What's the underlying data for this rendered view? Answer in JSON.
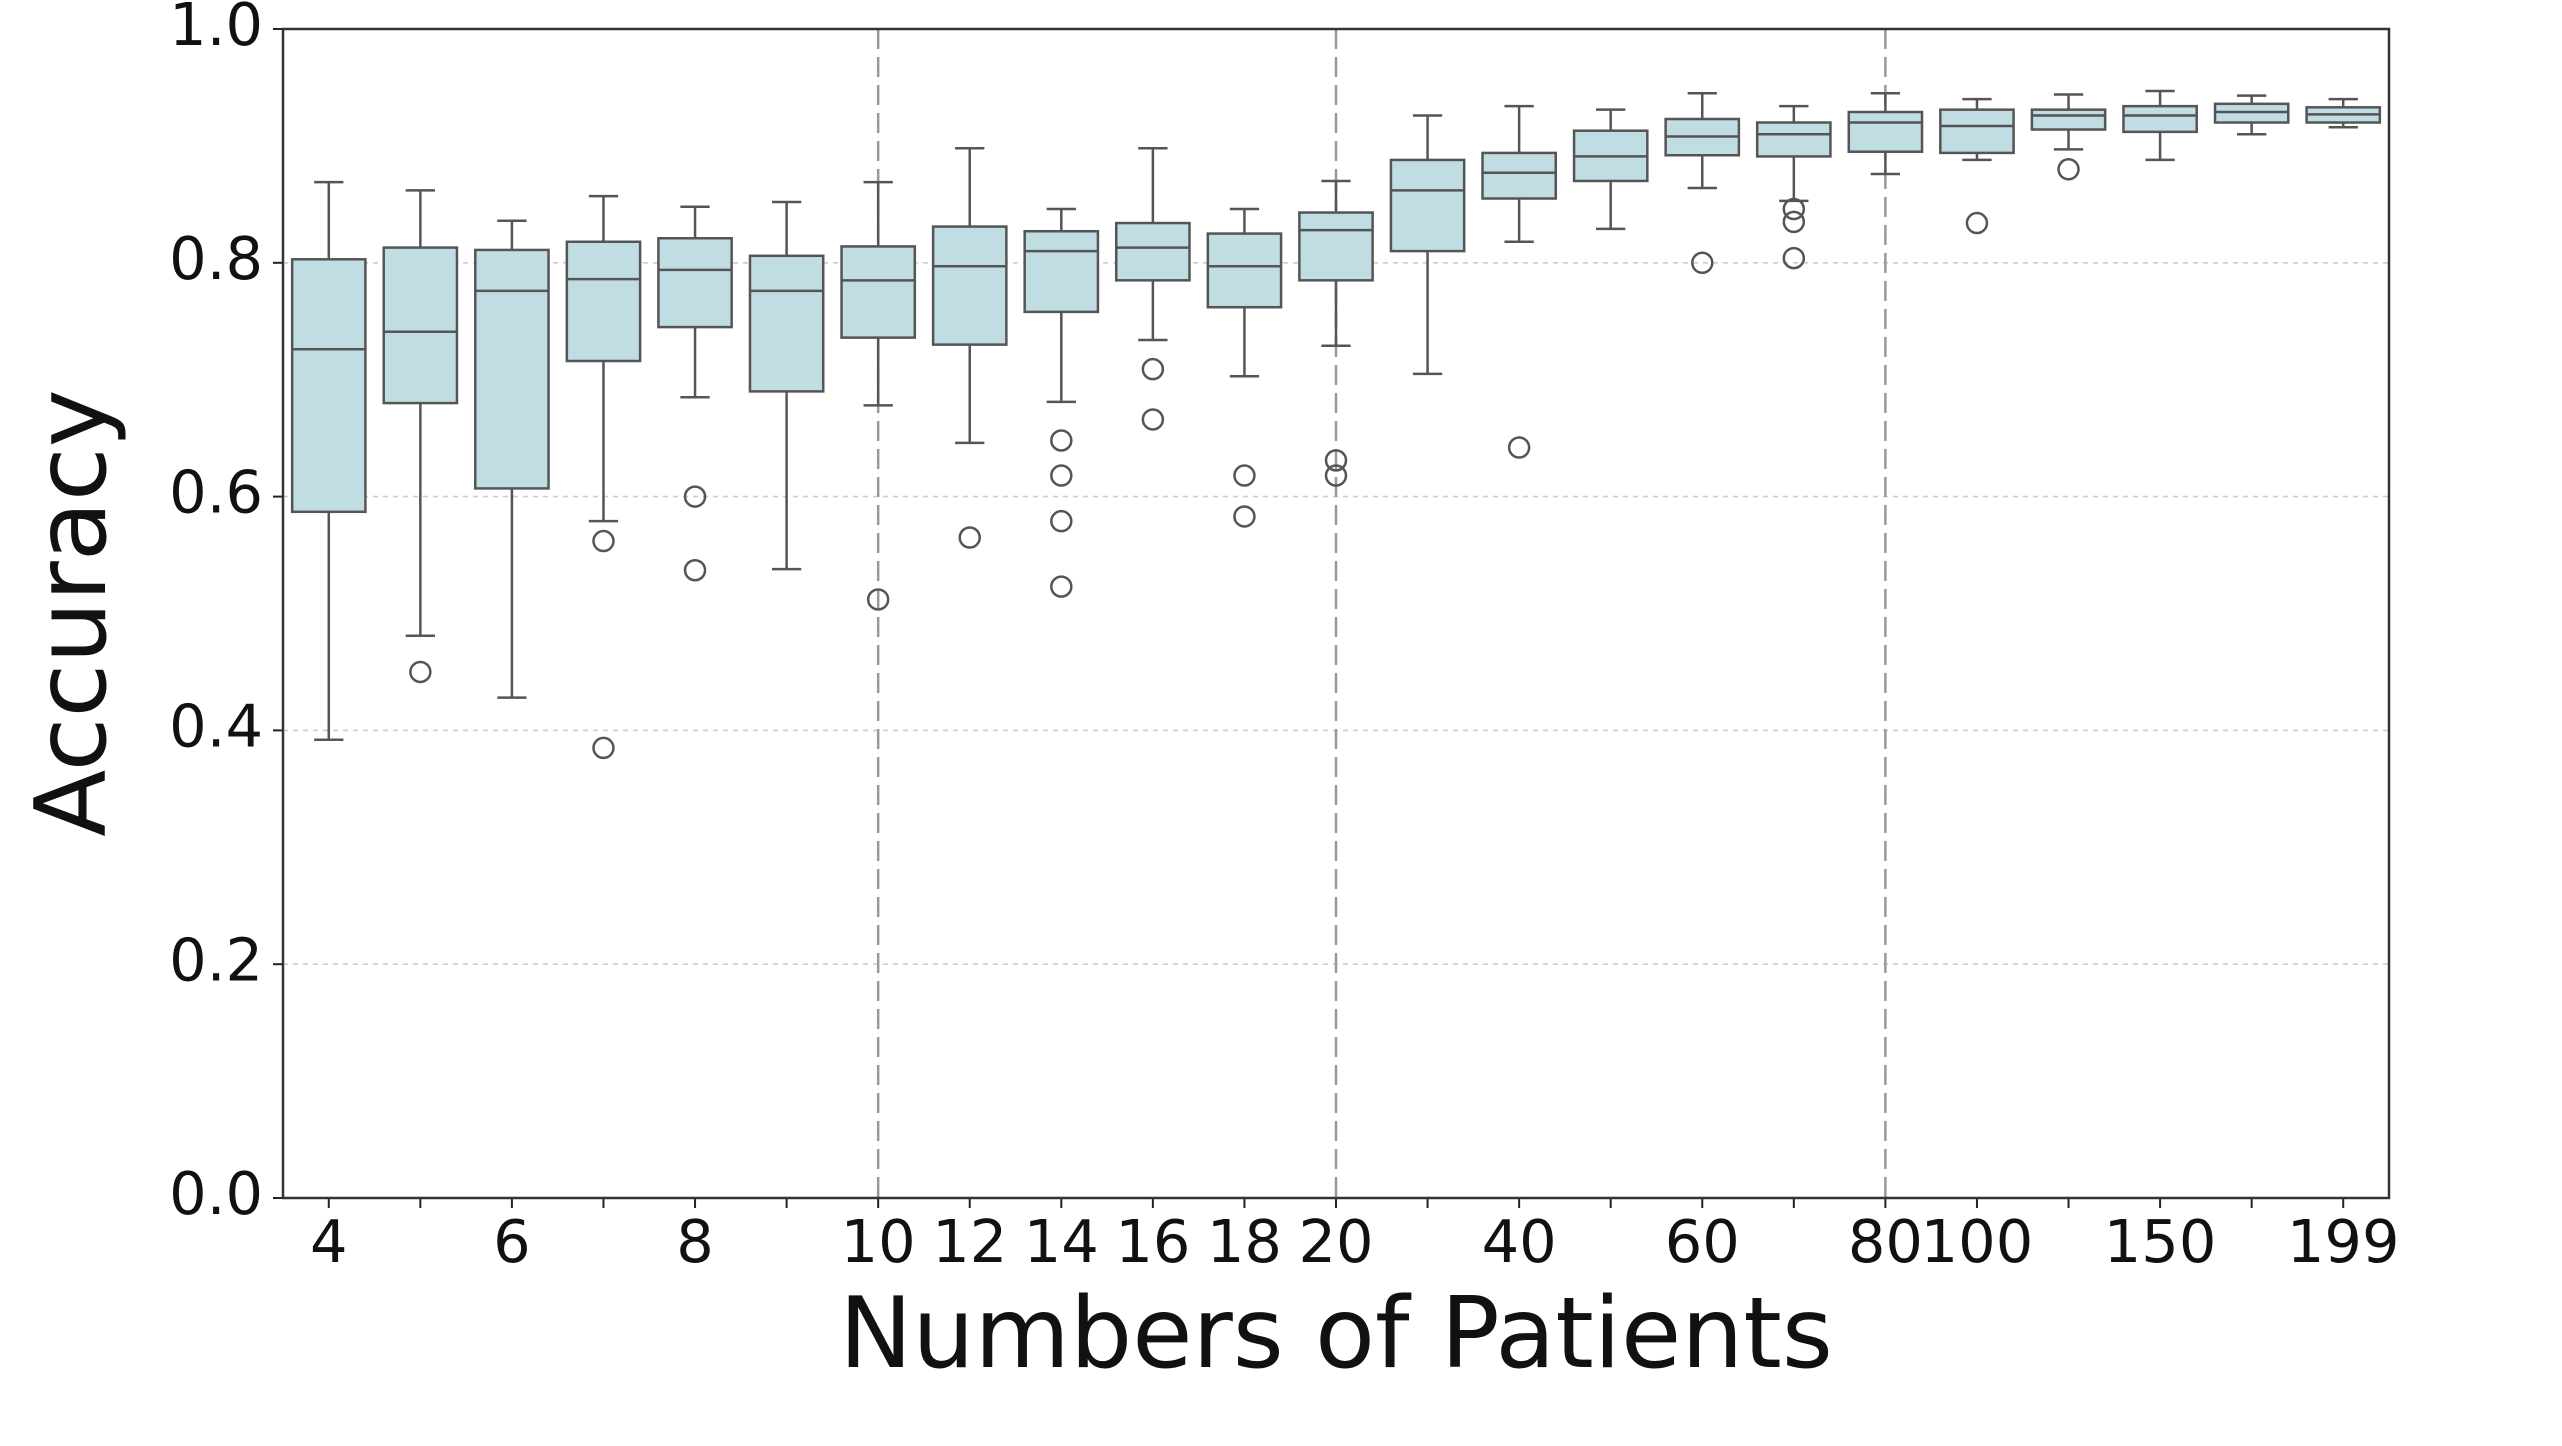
{
  "chart_data": {
    "type": "boxplot",
    "xlabel": "Numbers of Patients",
    "ylabel": "Accuracy",
    "categories": [
      "4",
      null,
      "6",
      null,
      "8",
      null,
      "10",
      "12",
      "14",
      "16",
      "18",
      "20",
      null,
      "40",
      null,
      "60",
      null,
      "80",
      "100",
      null,
      "150",
      null,
      "199"
    ],
    "boxes": [
      {
        "whislo": 0.392,
        "q1": 0.587,
        "med": 0.726,
        "q3": 0.803,
        "whishi": 0.869,
        "fliers": []
      },
      {
        "whislo": 0.481,
        "q1": 0.68,
        "med": 0.741,
        "q3": 0.813,
        "whishi": 0.862,
        "fliers": [
          0.45
        ]
      },
      {
        "whislo": 0.428,
        "q1": 0.607,
        "med": 0.776,
        "q3": 0.811,
        "whishi": 0.836,
        "fliers": []
      },
      {
        "whislo": 0.579,
        "q1": 0.716,
        "med": 0.786,
        "q3": 0.818,
        "whishi": 0.857,
        "fliers": [
          0.562,
          0.385
        ]
      },
      {
        "whislo": 0.685,
        "q1": 0.745,
        "med": 0.794,
        "q3": 0.821,
        "whishi": 0.848,
        "fliers": [
          0.6,
          0.537
        ]
      },
      {
        "whislo": 0.538,
        "q1": 0.69,
        "med": 0.776,
        "q3": 0.806,
        "whishi": 0.852,
        "fliers": []
      },
      {
        "whislo": 0.678,
        "q1": 0.736,
        "med": 0.785,
        "q3": 0.814,
        "whishi": 0.869,
        "fliers": [
          0.512
        ]
      },
      {
        "whislo": 0.646,
        "q1": 0.73,
        "med": 0.797,
        "q3": 0.831,
        "whishi": 0.898,
        "fliers": [
          0.565
        ]
      },
      {
        "whislo": 0.681,
        "q1": 0.758,
        "med": 0.81,
        "q3": 0.827,
        "whishi": 0.846,
        "fliers": [
          0.648,
          0.618,
          0.579,
          0.523
        ]
      },
      {
        "whislo": 0.734,
        "q1": 0.785,
        "med": 0.813,
        "q3": 0.834,
        "whishi": 0.898,
        "fliers": [
          0.709,
          0.666
        ]
      },
      {
        "whislo": 0.703,
        "q1": 0.762,
        "med": 0.797,
        "q3": 0.825,
        "whishi": 0.846,
        "fliers": [
          0.618,
          0.583
        ]
      },
      {
        "whislo": 0.729,
        "q1": 0.785,
        "med": 0.828,
        "q3": 0.843,
        "whishi": 0.87,
        "fliers": [
          0.631,
          0.618
        ]
      },
      {
        "whislo": 0.705,
        "q1": 0.81,
        "med": 0.862,
        "q3": 0.888,
        "whishi": 0.926,
        "fliers": []
      },
      {
        "whislo": 0.818,
        "q1": 0.855,
        "med": 0.877,
        "q3": 0.894,
        "whishi": 0.934,
        "fliers": [
          0.642
        ]
      },
      {
        "whislo": 0.829,
        "q1": 0.87,
        "med": 0.891,
        "q3": 0.913,
        "whishi": 0.931,
        "fliers": []
      },
      {
        "whislo": 0.864,
        "q1": 0.892,
        "med": 0.908,
        "q3": 0.923,
        "whishi": 0.945,
        "fliers": [
          0.8
        ]
      },
      {
        "whislo": 0.853,
        "q1": 0.891,
        "med": 0.91,
        "q3": 0.92,
        "whishi": 0.934,
        "fliers": [
          0.846,
          0.835,
          0.804
        ]
      },
      {
        "whislo": 0.876,
        "q1": 0.895,
        "med": 0.92,
        "q3": 0.929,
        "whishi": 0.945,
        "fliers": []
      },
      {
        "whislo": 0.888,
        "q1": 0.894,
        "med": 0.917,
        "q3": 0.931,
        "whishi": 0.94,
        "fliers": [
          0.834
        ]
      },
      {
        "whislo": 0.897,
        "q1": 0.914,
        "med": 0.926,
        "q3": 0.931,
        "whishi": 0.944,
        "fliers": [
          0.88
        ]
      },
      {
        "whislo": 0.888,
        "q1": 0.912,
        "med": 0.926,
        "q3": 0.934,
        "whishi": 0.947,
        "fliers": []
      },
      {
        "whislo": 0.91,
        "q1": 0.92,
        "med": 0.929,
        "q3": 0.936,
        "whishi": 0.943,
        "fliers": []
      },
      {
        "whislo": 0.916,
        "q1": 0.92,
        "med": 0.927,
        "q3": 0.933,
        "whishi": 0.94,
        "fliers": []
      }
    ],
    "color": "#c0dde3",
    "edgecolor": "#555555",
    "ylim": [
      0,
      1
    ],
    "yticks": [
      {
        "value": 0,
        "label": "0.0"
      },
      0.2,
      0.4,
      0.6,
      0.8,
      {
        "value": 1,
        "label": "1.0"
      }
    ],
    "grid": true,
    "vlines_at": [
      "10",
      "20",
      "80"
    ]
  }
}
